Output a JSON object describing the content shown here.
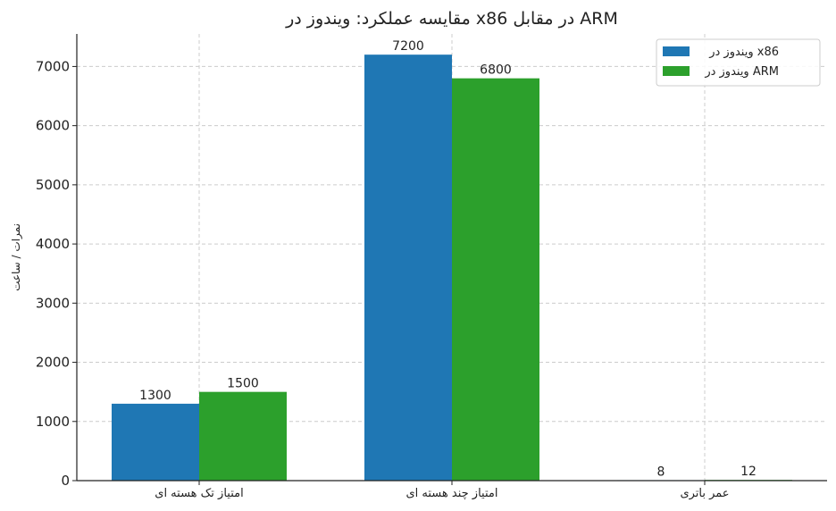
{
  "chart_data": {
    "type": "bar",
    "title": "مقایسه عملکرد: ویندوز در x86 در مقابل ARM",
    "xlabel": "",
    "ylabel": "نمرات / ساعت",
    "categories": [
      "امتیاز تک هسته ای",
      "امتیاز چند هسته ای",
      "عمر باتری"
    ],
    "series": [
      {
        "name": "ویندوز در x86",
        "values": [
          1300,
          7200,
          8
        ],
        "color": "#1f77b4"
      },
      {
        "name": "ویندوز در ARM",
        "values": [
          1500,
          6800,
          12
        ],
        "color": "#2ca02c"
      }
    ],
    "ylim": [
      0,
      7550
    ],
    "yticks": [
      0,
      1000,
      2000,
      3000,
      4000,
      5000,
      6000,
      7000
    ],
    "grid": true,
    "legend_position": "top-right"
  }
}
